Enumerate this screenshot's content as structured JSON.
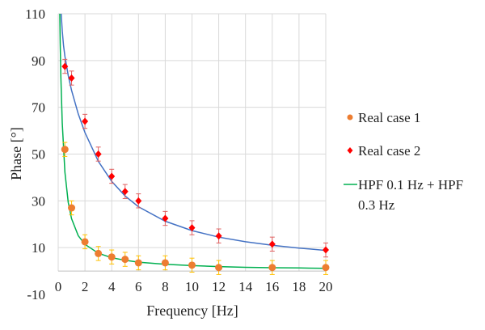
{
  "chart_data": {
    "type": "scatter",
    "xlabel": "Frequency [Hz]",
    "ylabel": "Phase [°]",
    "xlim": [
      0,
      20
    ],
    "ylim": [
      -10,
      110
    ],
    "x_ticks": [
      0,
      2,
      4,
      6,
      8,
      10,
      12,
      14,
      16,
      18,
      20
    ],
    "y_ticks": [
      -10,
      10,
      30,
      50,
      70,
      90,
      110
    ],
    "grid": true,
    "legend_position": "right",
    "series": [
      {
        "name": "Real case 1",
        "marker": "circle",
        "color": "#ED7D31",
        "error_color": "#FFC000",
        "x": [
          0.5,
          1,
          2,
          3,
          4,
          5,
          6,
          8,
          10,
          12,
          16,
          20
        ],
        "y": [
          52,
          27,
          12.5,
          7.5,
          6,
          5,
          3.5,
          3.5,
          2.5,
          1.5,
          1.5,
          1.5
        ],
        "error": [
          3,
          3,
          3,
          3,
          3,
          3,
          3,
          3,
          3,
          3,
          3,
          3
        ]
      },
      {
        "name": "Real case 2",
        "marker": "diamond",
        "color": "#FF0000",
        "error_color": "#E06060",
        "x": [
          0.5,
          1,
          2,
          3,
          4,
          5,
          6,
          8,
          10,
          12,
          16,
          20
        ],
        "y": [
          87.5,
          82.5,
          64,
          50,
          40.5,
          34,
          30,
          22.5,
          18.5,
          15,
          11.5,
          9
        ],
        "error": [
          3,
          3,
          3,
          3,
          3,
          3,
          3,
          3,
          3,
          3,
          3,
          3
        ]
      }
    ],
    "curves": [
      {
        "name": "HPF 0.1 Hz + HPF 0.3 Hz",
        "legend_lines": [
          "HPF 0.1 Hz + HPF",
          "0.3 Hz"
        ],
        "color": "#00B050",
        "x": [
          0.1,
          0.15,
          0.2,
          0.3,
          0.5,
          0.75,
          1,
          1.5,
          2,
          3,
          4,
          5,
          6,
          8,
          10,
          12,
          14,
          16,
          18,
          20
        ],
        "y": [
          116.6,
          97.1,
          82.9,
          63.4,
          42.3,
          29.4,
          22.4,
          15.1,
          11.4,
          7.6,
          5.7,
          4.6,
          3.8,
          2.9,
          2.3,
          1.9,
          1.6,
          1.4,
          1.3,
          1.15
        ]
      },
      {
        "name": "",
        "color": "#4472C4",
        "x": [
          0.22,
          0.3,
          0.4,
          0.5,
          0.75,
          1,
          1.5,
          2,
          3,
          4,
          5,
          6,
          8,
          10,
          12,
          14,
          16,
          18,
          20
        ],
        "y": [
          110.4,
          102.7,
          96.4,
          91.8,
          83.6,
          77.3,
          67.2,
          59.2,
          46.9,
          38.3,
          32.1,
          27.5,
          21.3,
          17.3,
          14.5,
          12.5,
          11.0,
          9.8,
          8.8
        ]
      }
    ]
  }
}
